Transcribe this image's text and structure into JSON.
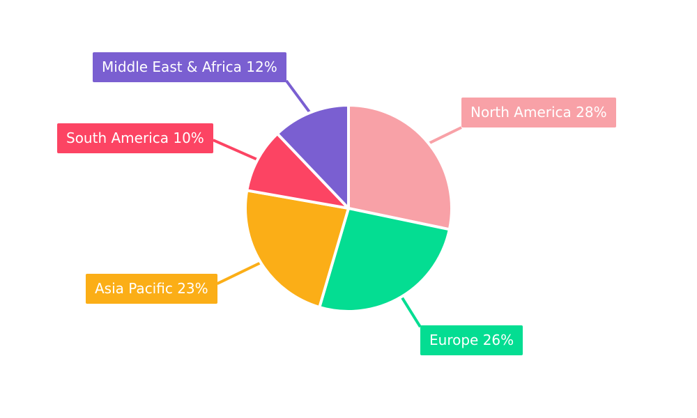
{
  "chart_data": {
    "type": "pie",
    "title": "",
    "unit": "%",
    "legend": "none",
    "label_style": "external-colored-boxes-with-leader-lines",
    "label_text_color": "#ffffff",
    "background": "#ffffff",
    "start_angle": "12-o'clock",
    "direction": "clockwise",
    "slices": [
      {
        "name": "North America",
        "value": 28,
        "label": "North America 28%",
        "color": "#f8a1a7"
      },
      {
        "name": "Europe",
        "value": 26,
        "label": "Europe 26%",
        "color": "#04dd92"
      },
      {
        "name": "Asia Pacific",
        "value": 23,
        "label": "Asia Pacific 23%",
        "color": "#fbae17"
      },
      {
        "name": "South America",
        "value": 10,
        "label": "South America 10%",
        "color": "#fc4463"
      },
      {
        "name": "Middle East & Africa",
        "value": 12,
        "label": "Middle East & Africa 12%",
        "color": "#7a5fd1"
      }
    ]
  }
}
